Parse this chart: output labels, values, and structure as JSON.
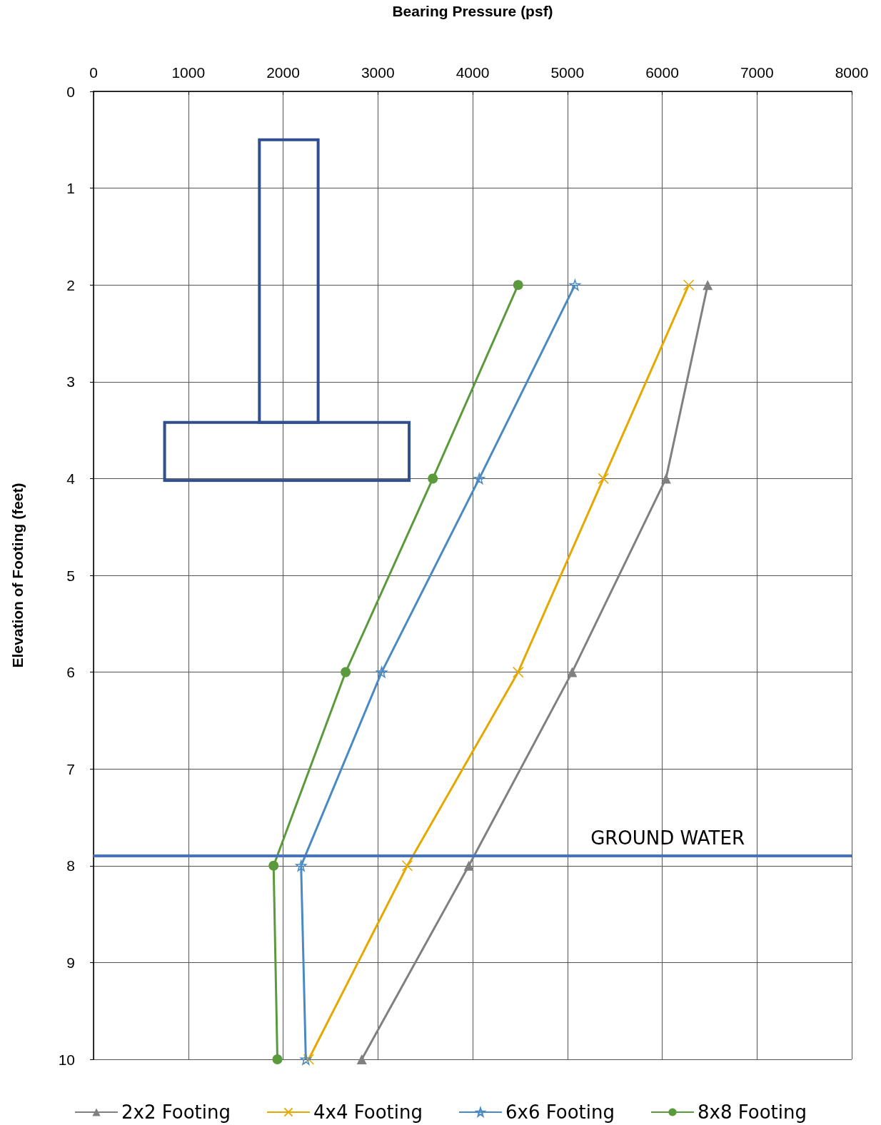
{
  "chart_data": {
    "type": "line",
    "xlabel": "Bearing Pressure (psf)",
    "ylabel": "Elevation of Footing (feet)",
    "xlim": [
      0,
      8000
    ],
    "xticks": [
      0,
      1000,
      2000,
      3000,
      4000,
      5000,
      6000,
      7000,
      8000
    ],
    "ylim": [
      10,
      0
    ],
    "yticks": [
      0,
      1,
      2,
      3,
      4,
      5,
      6,
      7,
      8,
      9,
      10
    ],
    "grid": true,
    "legend": "bottom",
    "series": [
      {
        "name": "2x2 Footing",
        "color": "#808080",
        "marker": "triangle",
        "x": [
          6480,
          6040,
          5050,
          3960,
          2830
        ],
        "values": [
          2,
          4,
          6,
          8,
          10
        ]
      },
      {
        "name": "4x4 Footing",
        "color": "#e6a800",
        "marker": "cross",
        "x": [
          6280,
          5380,
          4480,
          3310,
          2270
        ],
        "values": [
          2,
          4,
          6,
          8,
          10
        ]
      },
      {
        "name": "6x6 Footing",
        "color": "#4a8ac4",
        "marker": "star",
        "x": [
          5080,
          4070,
          3040,
          2190,
          2240
        ],
        "values": [
          2,
          4,
          6,
          8,
          10
        ]
      },
      {
        "name": "8x8 Footing",
        "color": "#5b9a3c",
        "marker": "circle",
        "x": [
          4480,
          3580,
          2660,
          1900,
          1940
        ],
        "values": [
          2,
          4,
          6,
          8,
          10
        ]
      }
    ],
    "ref_lines": [
      {
        "axis": "y",
        "value": 7.9,
        "label": "GROUND WATER",
        "color": "#4472c4"
      }
    ]
  }
}
